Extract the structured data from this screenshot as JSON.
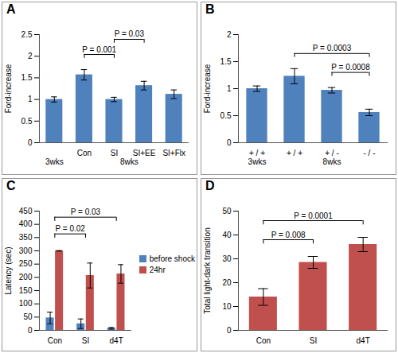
{
  "chart_data": [
    {
      "type": "bar",
      "title": "A",
      "y_label": "Ford-increase",
      "categories": [
        null,
        "Con",
        "SI",
        "SI+EE",
        "SI+Flx"
      ],
      "values": [
        1.0,
        1.57,
        1.0,
        1.32,
        1.12
      ],
      "errors": [
        0.06,
        0.12,
        0.05,
        0.1,
        0.1
      ],
      "color": "#4F81BD",
      "groups": [
        {
          "label": "3wks",
          "from": 0,
          "to": 0
        },
        {
          "label": "8wks",
          "from": 1,
          "to": 4
        }
      ],
      "annotations": [
        {
          "text": "P = 0.001",
          "from": 1,
          "to": 2
        },
        {
          "text": "P = 0.03",
          "from": 2,
          "to": 3
        }
      ],
      "ylim": [
        0,
        2.5
      ],
      "yticks": [
        0,
        0.5,
        1,
        1.5,
        2,
        2.5
      ],
      "grid": false
    },
    {
      "type": "bar",
      "title": "B",
      "y_label": "Ford-increase",
      "categories": [
        "+ / +",
        "+ / +",
        "+ / -",
        "- / -"
      ],
      "values": [
        1.0,
        1.23,
        0.97,
        0.56
      ],
      "errors": [
        0.05,
        0.14,
        0.05,
        0.06
      ],
      "color": "#4F81BD",
      "groups": [
        {
          "label": "3wks",
          "from": 0,
          "to": 0
        },
        {
          "label": "8wks",
          "from": 1,
          "to": 3
        }
      ],
      "annotations": [
        {
          "text": "P = 0.0003",
          "from": 1,
          "to": 3
        },
        {
          "text": "P = 0.0008",
          "from": 2,
          "to": 3
        }
      ],
      "ylim": [
        0,
        2
      ],
      "yticks": [
        0,
        0.5,
        1,
        1.5,
        2
      ],
      "grid": false
    },
    {
      "type": "bar",
      "title": "C",
      "y_label": "Latency (sec)",
      "categories": [
        "Con",
        "SI",
        "d4T"
      ],
      "series": [
        {
          "name": "before shock",
          "color": "#4F81BD",
          "values": [
            47,
            25,
            8
          ],
          "errors": [
            22,
            18,
            3
          ]
        },
        {
          "name": "24hr",
          "color": "#C0504D",
          "values": [
            300,
            207,
            213
          ],
          "errors": [
            1,
            47,
            35
          ]
        }
      ],
      "legend": "right",
      "annotations": [
        {
          "text": "P = 0.02",
          "from": 0,
          "to": 1
        },
        {
          "text": "P = 0.03",
          "from": 0,
          "to": 2
        }
      ],
      "ylim": [
        0,
        450
      ],
      "yticks": [
        0,
        50,
        100,
        150,
        200,
        250,
        300,
        350,
        400,
        450
      ],
      "grid": false
    },
    {
      "type": "bar",
      "title": "D",
      "y_label": "Total light-dark transition",
      "categories": [
        "Con",
        "SI",
        "d4T"
      ],
      "values": [
        14,
        28.5,
        36
      ],
      "errors": [
        3.5,
        2.5,
        3
      ],
      "color": "#C0504D",
      "annotations": [
        {
          "text": "P = 0.008",
          "from": 0,
          "to": 1
        },
        {
          "text": "P = 0.0001",
          "from": 0,
          "to": 2
        }
      ],
      "ylim": [
        0,
        50
      ],
      "yticks": [
        0,
        10,
        20,
        30,
        40,
        50
      ],
      "grid": false
    }
  ]
}
